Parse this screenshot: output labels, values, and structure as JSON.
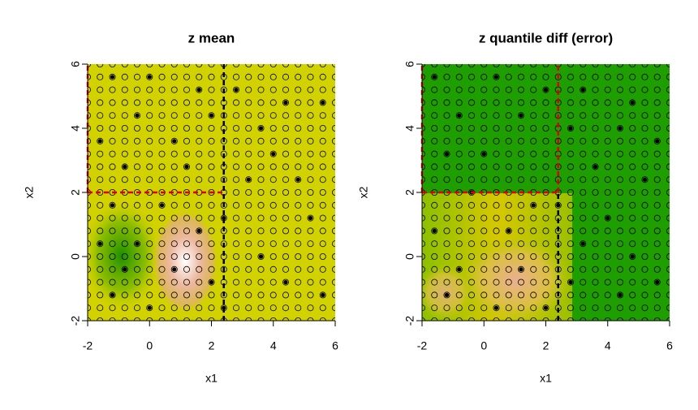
{
  "chart_data": [
    {
      "type": "scatter",
      "title": "z mean",
      "x_label": "x1",
      "y_label": "x2",
      "xlim": [
        -2,
        6
      ],
      "ylim": [
        -2,
        6
      ],
      "xticks": [
        -2,
        0,
        2,
        4,
        6
      ],
      "yticks": [
        -2,
        0,
        2,
        4,
        6
      ],
      "background": "#d2d200",
      "grid_x": [
        -2,
        -1.6,
        -1.2,
        -0.8,
        -0.4,
        0,
        0.4,
        0.8,
        1.2,
        1.6,
        2,
        2.4,
        2.8,
        3.2,
        3.6,
        4,
        4.4,
        4.8,
        5.2,
        5.6,
        6
      ],
      "grid_y": [
        -2,
        -1.6,
        -1.2,
        -0.8,
        -0.4,
        0,
        0.4,
        0.8,
        1.2,
        1.6,
        2,
        2.4,
        2.8,
        3.2,
        3.6,
        4,
        4.4,
        4.8,
        5.2,
        5.6,
        6
      ],
      "filled": {
        "x": [
          -1.2,
          0,
          1.6,
          2.8,
          4.4,
          5.6,
          -0.4,
          2.0,
          3.6,
          -1.6,
          0.8,
          4.0,
          -0.8,
          1.2,
          3.2,
          4.8,
          -1.2,
          0.4,
          2.4,
          5.2,
          -1.6,
          -0.4,
          1.6,
          3.6,
          -0.8,
          0.8,
          2.0,
          4.4,
          -1.2,
          0,
          2.4,
          5.6
        ],
        "y": [
          5.6,
          5.6,
          5.2,
          5.2,
          4.8,
          4.8,
          4.4,
          4.4,
          4.0,
          3.6,
          3.6,
          3.2,
          2.8,
          2.8,
          2.4,
          2.4,
          1.6,
          1.6,
          1.2,
          1.2,
          0.4,
          0.4,
          0.8,
          0,
          -0.4,
          -0.4,
          -0.8,
          -0.8,
          -1.2,
          -1.6,
          -1.6,
          -1.2
        ]
      },
      "splits": [
        {
          "x": [
            2.4,
            2.4
          ],
          "y": [
            -2,
            6
          ],
          "color": "#000000"
        },
        {
          "x": [
            -2,
            2.4
          ],
          "y": [
            2,
            2
          ],
          "color": "#e00000"
        },
        {
          "x": [
            -2,
            -2
          ],
          "y": [
            2,
            6
          ],
          "color": "#e00000"
        }
      ]
    },
    {
      "type": "scatter",
      "title": "z quantile diff (error)",
      "x_label": "x1",
      "y_label": "x2",
      "xlim": [
        -2,
        6
      ],
      "ylim": [
        -2,
        6
      ],
      "xticks": [
        -2,
        0,
        2,
        4,
        6
      ],
      "yticks": [
        -2,
        0,
        2,
        4,
        6
      ],
      "background": "#1e9e00",
      "grid_x": [
        -2,
        -1.6,
        -1.2,
        -0.8,
        -0.4,
        0,
        0.4,
        0.8,
        1.2,
        1.6,
        2,
        2.4,
        2.8,
        3.2,
        3.6,
        4,
        4.4,
        4.8,
        5.2,
        5.6,
        6
      ],
      "grid_y": [
        -2,
        -1.6,
        -1.2,
        -0.8,
        -0.4,
        0,
        0.4,
        0.8,
        1.2,
        1.6,
        2,
        2.4,
        2.8,
        3.2,
        3.6,
        4,
        4.4,
        4.8,
        5.2,
        5.6,
        6
      ],
      "filled": {
        "x": [
          -1.6,
          0.4,
          2.0,
          3.2,
          4.8,
          -0.8,
          1.2,
          2.8,
          4.4,
          5.6,
          -1.2,
          0,
          3.6,
          5.2,
          -0.4,
          1.6,
          2.4,
          4.0,
          -1.6,
          0.8,
          3.2,
          4.8,
          -0.8,
          1.2,
          2.8,
          5.6,
          -1.2,
          0.4,
          2.0,
          4.4
        ],
        "y": [
          5.6,
          5.6,
          5.2,
          5.2,
          4.8,
          4.4,
          4.4,
          4.0,
          4.0,
          3.6,
          3.2,
          3.2,
          2.8,
          2.4,
          2.0,
          1.6,
          1.6,
          1.2,
          0.8,
          0.8,
          0.4,
          0,
          -0.4,
          -0.4,
          -0.8,
          -0.8,
          -1.2,
          -1.6,
          -1.6,
          -1.2
        ]
      },
      "splits": [
        {
          "x": [
            2.4,
            2.4
          ],
          "y": [
            -2,
            2
          ],
          "color": "#000000"
        },
        {
          "x": [
            2.4,
            2.4
          ],
          "y": [
            2,
            6
          ],
          "color": "#e00000"
        },
        {
          "x": [
            -2,
            2.4
          ],
          "y": [
            2,
            2
          ],
          "color": "#e00000"
        },
        {
          "x": [
            -2,
            -2
          ],
          "y": [
            2,
            6
          ],
          "color": "#e00000"
        }
      ]
    }
  ]
}
